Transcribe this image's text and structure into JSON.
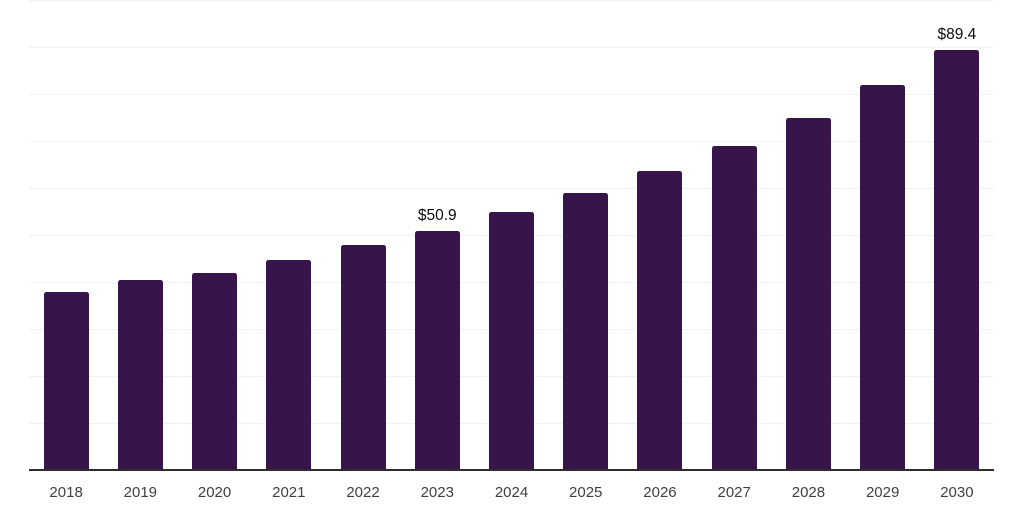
{
  "page": {
    "background_color": "#ffffff"
  },
  "chart_data": {
    "type": "bar",
    "title": "",
    "xlabel": "",
    "ylabel": "",
    "categories": [
      "2018",
      "2019",
      "2020",
      "2021",
      "2022",
      "2023",
      "2024",
      "2025",
      "2026",
      "2027",
      "2028",
      "2029",
      "2030"
    ],
    "values": [
      37.9,
      40.5,
      41.9,
      44.6,
      47.8,
      50.9,
      54.9,
      58.9,
      63.7,
      68.9,
      75.0,
      81.9,
      89.4
    ],
    "value_unit": "USD",
    "data_labels": [
      "",
      "",
      "",
      "",
      "",
      "$50.9",
      "",
      "",
      "",
      "",
      "",
      "",
      "$89.4"
    ],
    "ylim": [
      0,
      100
    ],
    "grid_step": 10,
    "grid": "horizontal-only",
    "y_tick_labels_visible": false,
    "legend": "none",
    "colors": {
      "bar": "#37144a",
      "gridline": "#f2f2f2",
      "axis": "#2e2e2e",
      "tick_label": "#404040",
      "value_label": "#0d0d0d"
    }
  }
}
